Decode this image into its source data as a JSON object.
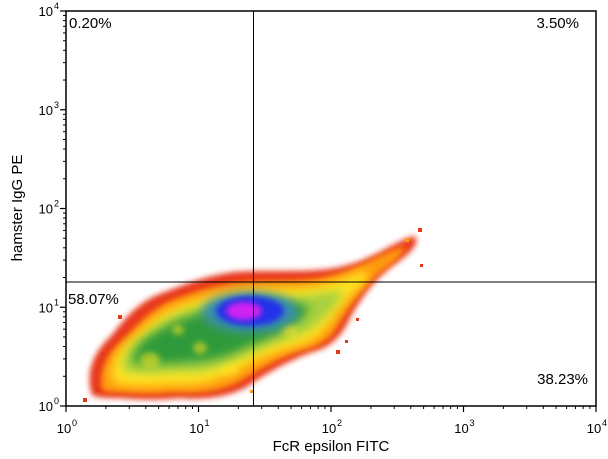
{
  "chart_data": {
    "type": "scatter",
    "subtype": "flow-cytometry-density-plot",
    "xlabel": "FcR epsilon FITC",
    "ylabel": "hamster IgG PE",
    "x_scale": "log",
    "y_scale": "log",
    "xlim": [
      1,
      10000
    ],
    "ylim": [
      1,
      10000
    ],
    "x_ticks": [
      {
        "value": 1,
        "base": "10",
        "exp": "0"
      },
      {
        "value": 10,
        "base": "10",
        "exp": "1"
      },
      {
        "value": 100,
        "base": "10",
        "exp": "2"
      },
      {
        "value": 1000,
        "base": "10",
        "exp": "3"
      },
      {
        "value": 10000,
        "base": "10",
        "exp": "4"
      }
    ],
    "y_ticks": [
      {
        "value": 1,
        "base": "10",
        "exp": "0"
      },
      {
        "value": 10,
        "base": "10",
        "exp": "1"
      },
      {
        "value": 100,
        "base": "10",
        "exp": "2"
      },
      {
        "value": 1000,
        "base": "10",
        "exp": "3"
      },
      {
        "value": 10000,
        "base": "10",
        "exp": "4"
      }
    ],
    "gate": {
      "x": 26,
      "y": 18
    },
    "quadrants": {
      "upper_left": "0.20%",
      "upper_right": "3.50%",
      "lower_left": "58.07%",
      "lower_right": "38.23%"
    },
    "grid": false,
    "colors": {
      "density_low": "#e8381a",
      "density_low_mid": "#ff9a10",
      "density_mid": "#ffe620",
      "density_mid_high": "#2f9a3a",
      "density_high": "#2030e8",
      "density_peak": "#d020f0"
    }
  }
}
